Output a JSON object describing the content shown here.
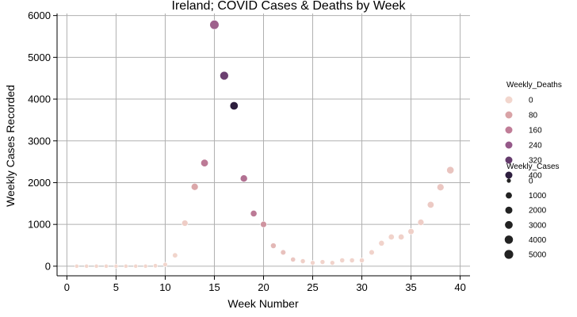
{
  "chart_data": {
    "type": "scatter",
    "title": "Ireland; COVID Cases & Deaths by Week",
    "xlabel": "Week Number",
    "ylabel": "Weekly Cases Recorded",
    "xlim": [
      -1,
      41
    ],
    "ylim": [
      -230,
      6050
    ],
    "xticks": [
      0,
      5,
      10,
      15,
      20,
      25,
      30,
      35,
      40
    ],
    "yticks": [
      0,
      1000,
      2000,
      3000,
      4000,
      5000,
      6000
    ],
    "grid": true,
    "legend_placement": "right",
    "hue": {
      "title": "Weekly_Deaths",
      "entries": [
        0,
        80,
        160,
        240,
        320,
        400
      ],
      "colors": [
        "#f2d6cd",
        "#d9a3a6",
        "#c07d97",
        "#955989",
        "#643b6c",
        "#2d1e3e"
      ],
      "max": 430
    },
    "size": {
      "title": "Weekly_Cases",
      "entries": [
        0,
        1000,
        2000,
        3000,
        4000,
        5000
      ],
      "max": 5800
    },
    "points": [
      {
        "week": 1,
        "cases": 0,
        "deaths": 0
      },
      {
        "week": 2,
        "cases": 0,
        "deaths": 0
      },
      {
        "week": 3,
        "cases": 0,
        "deaths": 0
      },
      {
        "week": 4,
        "cases": 0,
        "deaths": 0
      },
      {
        "week": 5,
        "cases": 0,
        "deaths": 0
      },
      {
        "week": 6,
        "cases": 0,
        "deaths": 0
      },
      {
        "week": 7,
        "cases": 0,
        "deaths": 0
      },
      {
        "week": 8,
        "cases": 0,
        "deaths": 0
      },
      {
        "week": 9,
        "cases": 10,
        "deaths": 0
      },
      {
        "week": 10,
        "cases": 40,
        "deaths": 0
      },
      {
        "week": 11,
        "cases": 260,
        "deaths": 2
      },
      {
        "week": 12,
        "cases": 1030,
        "deaths": 15
      },
      {
        "week": 13,
        "cases": 1900,
        "deaths": 80
      },
      {
        "week": 14,
        "cases": 2470,
        "deaths": 180
      },
      {
        "week": 15,
        "cases": 5780,
        "deaths": 240
      },
      {
        "week": 16,
        "cases": 4560,
        "deaths": 330
      },
      {
        "week": 17,
        "cases": 3840,
        "deaths": 430
      },
      {
        "week": 18,
        "cases": 2100,
        "deaths": 200
      },
      {
        "week": 19,
        "cases": 1260,
        "deaths": 180
      },
      {
        "week": 20,
        "cases": 1000,
        "deaths": 120
      },
      {
        "week": 21,
        "cases": 490,
        "deaths": 50
      },
      {
        "week": 22,
        "cases": 330,
        "deaths": 35
      },
      {
        "week": 23,
        "cases": 160,
        "deaths": 25
      },
      {
        "week": 24,
        "cases": 120,
        "deaths": 10
      },
      {
        "week": 25,
        "cases": 80,
        "deaths": 5
      },
      {
        "week": 26,
        "cases": 100,
        "deaths": 5
      },
      {
        "week": 27,
        "cases": 80,
        "deaths": 5
      },
      {
        "week": 28,
        "cases": 140,
        "deaths": 3
      },
      {
        "week": 29,
        "cases": 140,
        "deaths": 3
      },
      {
        "week": 30,
        "cases": 140,
        "deaths": 5
      },
      {
        "week": 31,
        "cases": 330,
        "deaths": 5
      },
      {
        "week": 32,
        "cases": 550,
        "deaths": 5
      },
      {
        "week": 33,
        "cases": 700,
        "deaths": 5
      },
      {
        "week": 34,
        "cases": 700,
        "deaths": 8
      },
      {
        "week": 35,
        "cases": 830,
        "deaths": 10
      },
      {
        "week": 36,
        "cases": 1050,
        "deaths": 15
      },
      {
        "week": 37,
        "cases": 1470,
        "deaths": 20
      },
      {
        "week": 38,
        "cases": 1890,
        "deaths": 25
      },
      {
        "week": 39,
        "cases": 2300,
        "deaths": 30
      }
    ]
  }
}
